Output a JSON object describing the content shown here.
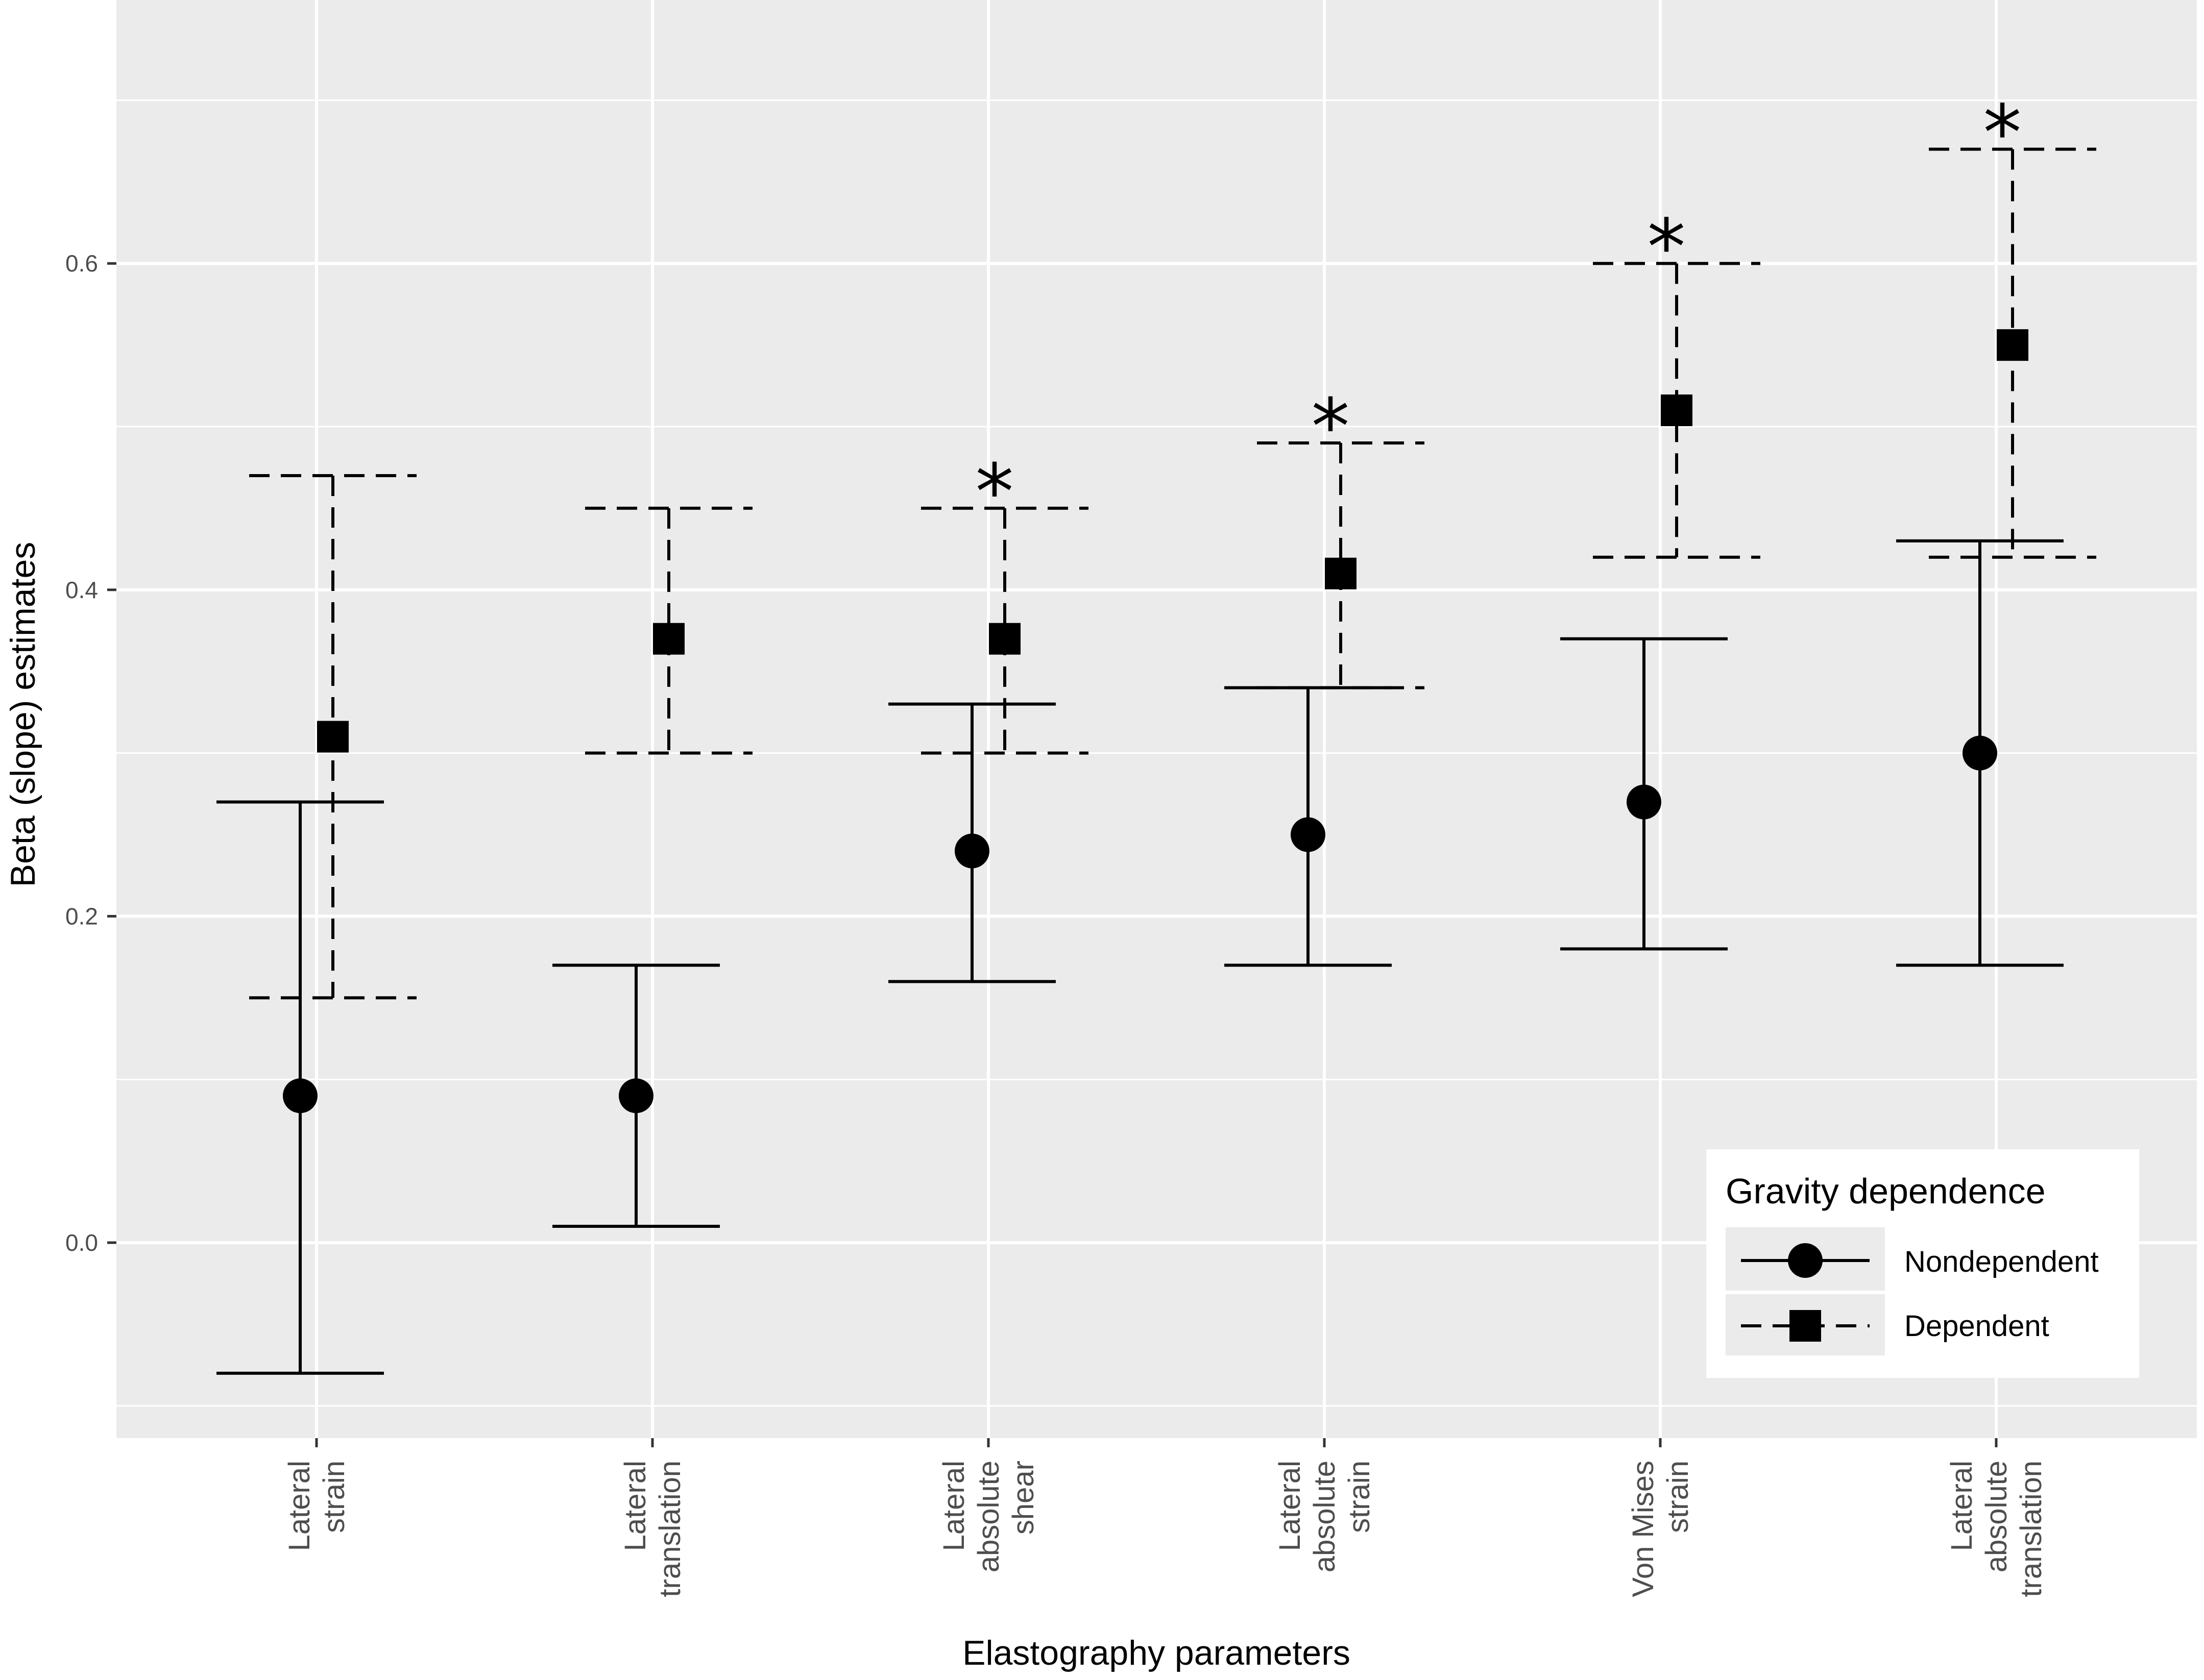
{
  "chart_data": {
    "type": "errorbar",
    "title": "",
    "xlabel": "Elastography parameters",
    "ylabel": "Beta (slope) estimates",
    "ylim": [
      -0.1,
      0.74
    ],
    "yticks": [
      0.0,
      0.2,
      0.4,
      0.6
    ],
    "ytick_labels": [
      "0.0",
      "0.2",
      "0.4",
      "0.6"
    ],
    "grid": true,
    "categories": [
      [
        "Lateral",
        "strain"
      ],
      [
        "Lateral",
        "translation"
      ],
      [
        "Lateral",
        "absolute",
        "shear"
      ],
      [
        "Lateral",
        "absolute",
        "strain"
      ],
      [
        "Von Mises",
        "strain"
      ],
      [
        "Lateral",
        "absolute",
        "translation"
      ]
    ],
    "series": [
      {
        "name": "Nondependent",
        "marker": "circle",
        "linestyle": "solid",
        "estimate": [
          0.09,
          0.09,
          0.24,
          0.25,
          0.27,
          0.3
        ],
        "lower": [
          -0.08,
          0.01,
          0.16,
          0.17,
          0.18,
          0.17
        ],
        "upper": [
          0.27,
          0.17,
          0.33,
          0.34,
          0.37,
          0.43
        ]
      },
      {
        "name": "Dependent",
        "marker": "square",
        "linestyle": "dashed",
        "estimate": [
          0.31,
          0.37,
          0.37,
          0.41,
          0.51,
          0.55
        ],
        "lower": [
          0.15,
          0.3,
          0.3,
          0.34,
          0.42,
          0.42
        ],
        "upper": [
          0.47,
          0.45,
          0.45,
          0.49,
          0.6,
          0.67
        ]
      }
    ],
    "significance": [
      false,
      false,
      true,
      true,
      true,
      true
    ],
    "significance_marker": "*",
    "legend": {
      "title": "Gravity dependence",
      "position": "bottom-right",
      "entries": [
        "Nondependent",
        "Dependent"
      ]
    }
  }
}
